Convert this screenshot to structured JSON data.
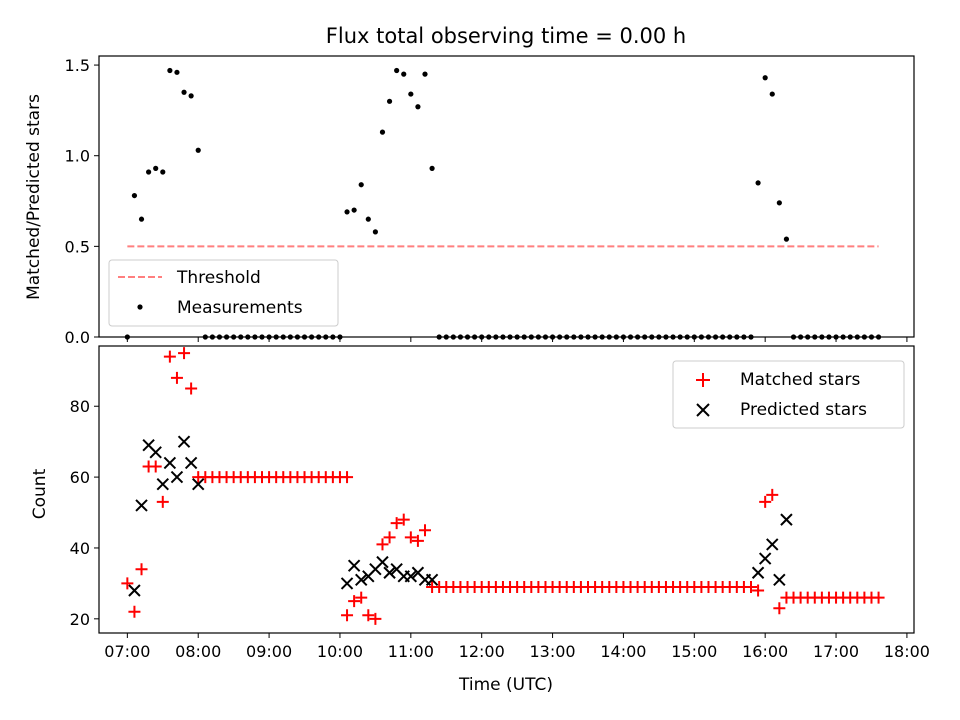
{
  "figure": {
    "title": "Flux total observing time = 0.00 h",
    "xlabel": "Time (UTC)",
    "x_ticks": [
      "07:00",
      "08:00",
      "09:00",
      "10:00",
      "11:00",
      "12:00",
      "13:00",
      "14:00",
      "15:00",
      "16:00",
      "17:00",
      "18:00"
    ]
  },
  "colors": {
    "threshold": "#ff7f7f",
    "measurements": "#000000",
    "matched": "#ff0000",
    "predicted": "#000000"
  },
  "chart_data": [
    {
      "type": "scatter",
      "panel": "top",
      "ylabel": "Matched/Predicted stars",
      "xlim": [
        "06:36",
        "18:06"
      ],
      "ylim": [
        0,
        1.55
      ],
      "y_ticks": [
        "0.0",
        "0.5",
        "1.0",
        "1.5"
      ],
      "legend_placement": "lower-left",
      "threshold": {
        "name": "Threshold",
        "value": 0.5,
        "x_range": [
          "07:00",
          "17:36"
        ],
        "style": "dashed"
      },
      "measurements": {
        "name": "Measurements",
        "points": [
          [
            "07:00",
            0.0
          ],
          [
            "07:06",
            0.78
          ],
          [
            "07:12",
            0.65
          ],
          [
            "07:18",
            0.91
          ],
          [
            "07:24",
            0.93
          ],
          [
            "07:30",
            0.91
          ],
          [
            "07:36",
            1.47
          ],
          [
            "07:42",
            1.46
          ],
          [
            "07:48",
            1.35
          ],
          [
            "07:54",
            1.33
          ],
          [
            "08:00",
            1.03
          ],
          [
            "10:06",
            0.69
          ],
          [
            "10:12",
            0.7
          ],
          [
            "10:18",
            0.84
          ],
          [
            "10:24",
            0.65
          ],
          [
            "10:30",
            0.58
          ],
          [
            "10:36",
            1.13
          ],
          [
            "10:42",
            1.3
          ],
          [
            "10:48",
            1.47
          ],
          [
            "10:54",
            1.45
          ],
          [
            "11:00",
            1.34
          ],
          [
            "11:06",
            1.27
          ],
          [
            "11:12",
            1.45
          ],
          [
            "11:18",
            0.93
          ],
          [
            "15:54",
            0.85
          ],
          [
            "16:00",
            1.43
          ],
          [
            "16:06",
            1.34
          ],
          [
            "16:12",
            0.74
          ],
          [
            "16:18",
            0.54
          ]
        ],
        "zero_runs": [
          {
            "from": "08:06",
            "to": "10:00",
            "value": 0
          },
          {
            "from": "11:24",
            "to": "15:48",
            "value": 0
          },
          {
            "from": "16:24",
            "to": "17:36",
            "value": 0
          }
        ]
      }
    },
    {
      "type": "scatter",
      "panel": "bottom",
      "ylabel": "Count",
      "xlim": [
        "06:36",
        "18:06"
      ],
      "ylim": [
        16,
        97
      ],
      "y_ticks": [
        "20",
        "40",
        "60",
        "80"
      ],
      "legend_placement": "top-right",
      "series": [
        {
          "name": "Matched stars",
          "marker": "+",
          "points": [
            [
              "07:00",
              30
            ],
            [
              "07:06",
              22
            ],
            [
              "07:12",
              34
            ],
            [
              "07:18",
              63
            ],
            [
              "07:24",
              63
            ],
            [
              "07:30",
              53
            ],
            [
              "07:36",
              94
            ],
            [
              "07:42",
              88
            ],
            [
              "07:48",
              95
            ],
            [
              "07:54",
              85
            ],
            [
              "08:00",
              60
            ],
            [
              "10:06",
              21
            ],
            [
              "10:12",
              25
            ],
            [
              "10:18",
              26
            ],
            [
              "10:24",
              21
            ],
            [
              "10:30",
              20
            ],
            [
              "10:36",
              41
            ],
            [
              "10:42",
              43
            ],
            [
              "10:48",
              47
            ],
            [
              "10:54",
              48
            ],
            [
              "11:00",
              43
            ],
            [
              "11:06",
              42
            ],
            [
              "11:12",
              45
            ],
            [
              "11:18",
              29
            ],
            [
              "15:54",
              28
            ],
            [
              "16:00",
              53
            ],
            [
              "16:06",
              55
            ],
            [
              "16:12",
              23
            ],
            [
              "16:18",
              26
            ]
          ],
          "constant_runs": [
            {
              "from": "08:06",
              "to": "10:06",
              "value": 60
            },
            {
              "from": "11:24",
              "to": "15:48",
              "value": 29
            },
            {
              "from": "16:24",
              "to": "17:36",
              "value": 26
            }
          ]
        },
        {
          "name": "Predicted stars",
          "marker": "x",
          "points": [
            [
              "07:06",
              28
            ],
            [
              "07:12",
              52
            ],
            [
              "07:18",
              69
            ],
            [
              "07:24",
              67
            ],
            [
              "07:30",
              58
            ],
            [
              "07:36",
              64
            ],
            [
              "07:42",
              60
            ],
            [
              "07:48",
              70
            ],
            [
              "07:54",
              64
            ],
            [
              "08:00",
              58
            ],
            [
              "10:06",
              30
            ],
            [
              "10:12",
              35
            ],
            [
              "10:18",
              31
            ],
            [
              "10:24",
              32
            ],
            [
              "10:30",
              34
            ],
            [
              "10:36",
              36
            ],
            [
              "10:42",
              33
            ],
            [
              "10:48",
              34
            ],
            [
              "10:54",
              32
            ],
            [
              "11:00",
              32
            ],
            [
              "11:06",
              33
            ],
            [
              "11:12",
              31
            ],
            [
              "11:18",
              31
            ],
            [
              "15:54",
              33
            ],
            [
              "16:00",
              37
            ],
            [
              "16:06",
              41
            ],
            [
              "16:12",
              31
            ],
            [
              "16:18",
              48
            ]
          ]
        }
      ]
    }
  ]
}
